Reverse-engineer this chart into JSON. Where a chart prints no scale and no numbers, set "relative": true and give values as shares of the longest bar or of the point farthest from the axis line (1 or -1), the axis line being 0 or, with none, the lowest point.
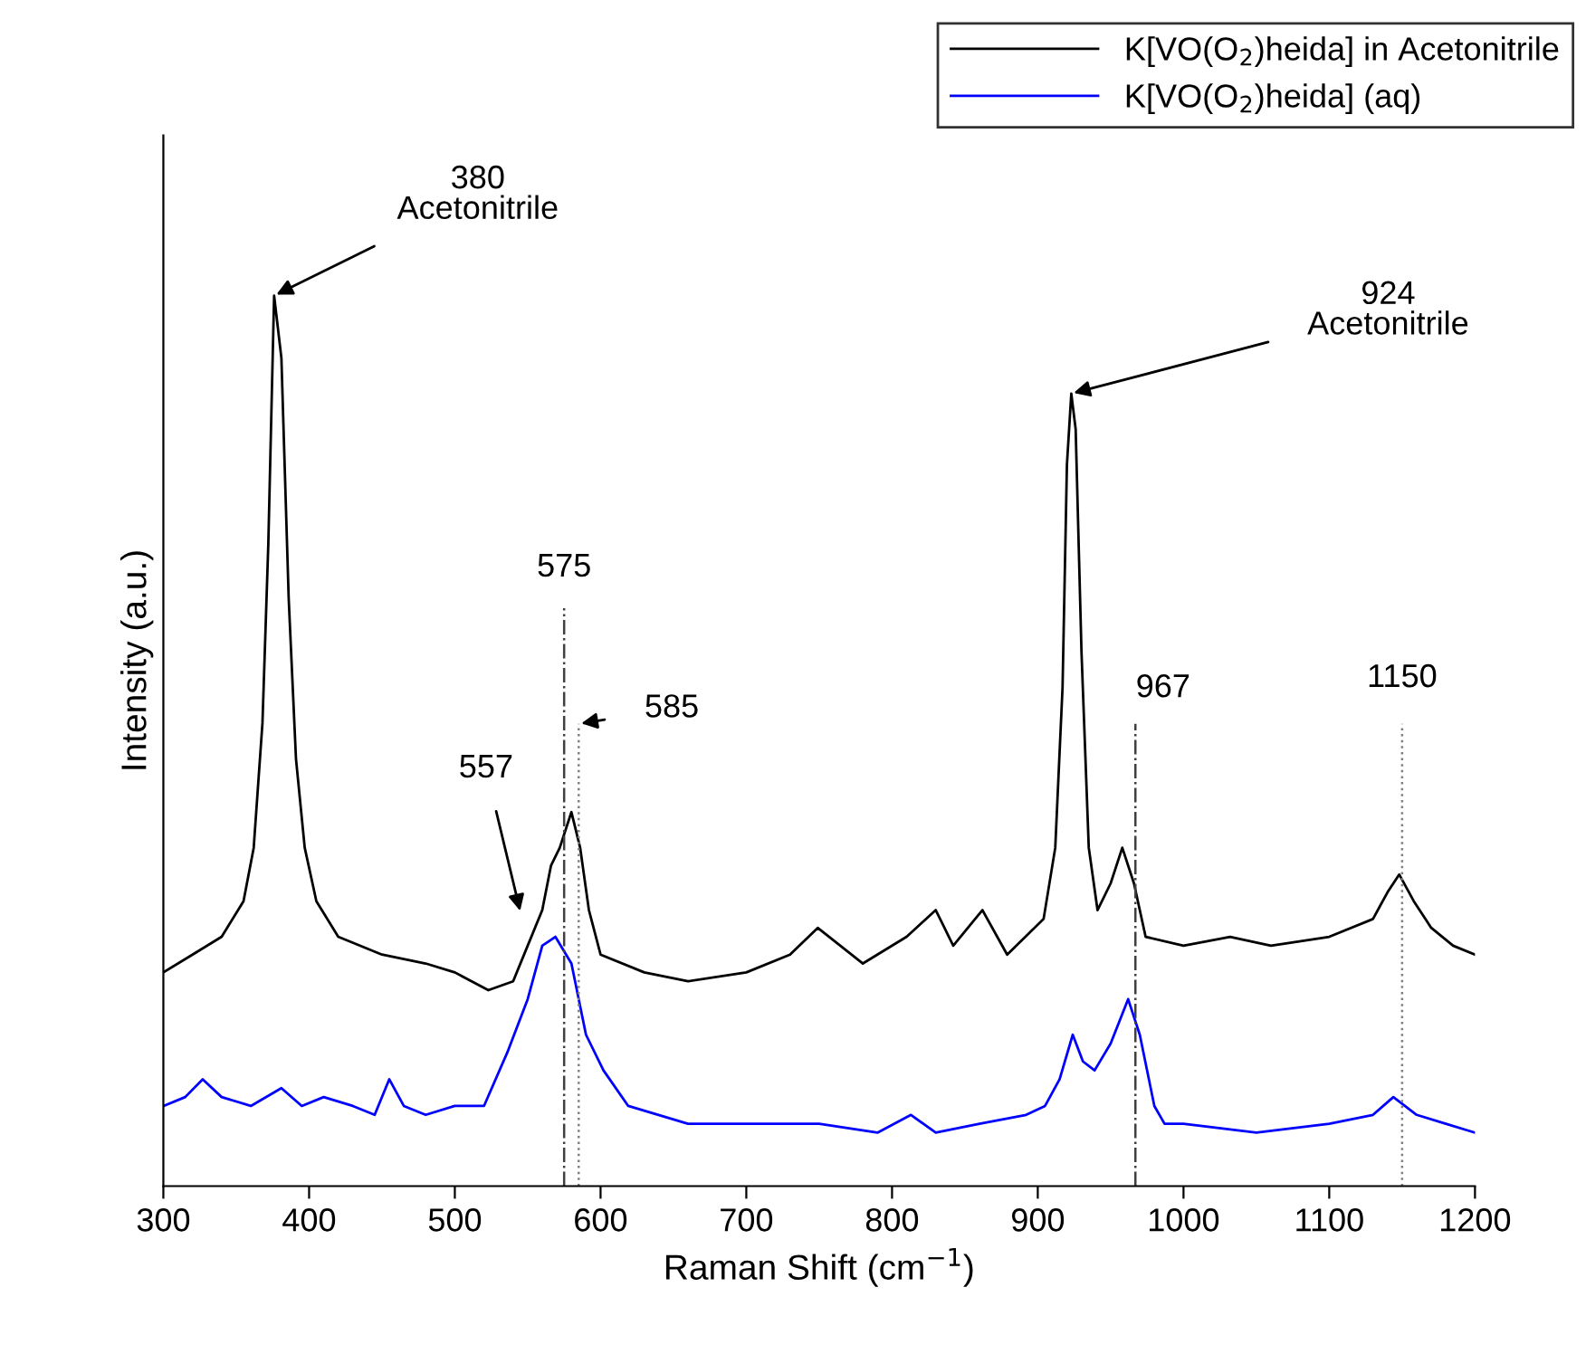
{
  "chart_data": {
    "type": "line",
    "relative": true,
    "xlabel": "Raman Shift (cm$^{−1}$)",
    "ylabel": "Intensity (a.u.)",
    "xlim": [
      300,
      1200
    ],
    "xticks": [
      300,
      400,
      500,
      600,
      700,
      800,
      900,
      1000,
      1100,
      1200
    ],
    "legend": "top right",
    "grid": false,
    "line_style": "solid",
    "marker": "none",
    "series": [
      {
        "name": "K[VO(O$_{2}$)heida] in Acetonitrile",
        "color": "#000000",
        "x": [
          300,
          320,
          340,
          355,
          362,
          368,
          372,
          376,
          381,
          386,
          391,
          397,
          405,
          420,
          450,
          480,
          500,
          523,
          540,
          550,
          560,
          566,
          572,
          580,
          586,
          592,
          600,
          630,
          660,
          700,
          730,
          749,
          780,
          810,
          830,
          842,
          862,
          879,
          904,
          912,
          917,
          920,
          923,
          926,
          930,
          935,
          941,
          950,
          958,
          966,
          974,
          1000,
          1032,
          1060,
          1100,
          1130,
          1140,
          1148,
          1158,
          1170,
          1185,
          1200
        ],
        "values": [
          0.24,
          0.26,
          0.28,
          0.32,
          0.38,
          0.52,
          0.72,
          1.0,
          0.93,
          0.66,
          0.48,
          0.38,
          0.32,
          0.28,
          0.26,
          0.25,
          0.24,
          0.22,
          0.23,
          0.27,
          0.31,
          0.36,
          0.38,
          0.42,
          0.38,
          0.31,
          0.26,
          0.24,
          0.23,
          0.24,
          0.26,
          0.29,
          0.25,
          0.28,
          0.31,
          0.27,
          0.31,
          0.26,
          0.3,
          0.38,
          0.56,
          0.81,
          0.89,
          0.85,
          0.6,
          0.38,
          0.31,
          0.34,
          0.38,
          0.34,
          0.28,
          0.27,
          0.28,
          0.27,
          0.28,
          0.3,
          0.33,
          0.35,
          0.32,
          0.29,
          0.27,
          0.26
        ]
      },
      {
        "name": "K[VO(O$_{2}$)heida] (aq)",
        "color": "#0000ff",
        "x": [
          300,
          315,
          327,
          340,
          360,
          381,
          395,
          410,
          430,
          445,
          455,
          465,
          480,
          500,
          520,
          536,
          550,
          560,
          569,
          580,
          590,
          602,
          619,
          660,
          700,
          750,
          790,
          813,
          830,
          860,
          892,
          905,
          915,
          924,
          931,
          939,
          950,
          962,
          970,
          980,
          987,
          1000,
          1050,
          1100,
          1130,
          1144,
          1160,
          1180,
          1200
        ],
        "values": [
          0.09,
          0.1,
          0.12,
          0.1,
          0.09,
          0.11,
          0.09,
          0.1,
          0.09,
          0.08,
          0.12,
          0.09,
          0.08,
          0.09,
          0.09,
          0.15,
          0.21,
          0.27,
          0.28,
          0.25,
          0.17,
          0.13,
          0.09,
          0.07,
          0.07,
          0.07,
          0.06,
          0.08,
          0.06,
          0.07,
          0.08,
          0.09,
          0.12,
          0.17,
          0.14,
          0.13,
          0.16,
          0.21,
          0.17,
          0.09,
          0.07,
          0.07,
          0.06,
          0.07,
          0.08,
          0.1,
          0.08,
          0.07,
          0.06
        ]
      }
    ],
    "ref_lines": [
      {
        "axis": "x",
        "value": 575,
        "label": "575",
        "color": "#404040",
        "line_style": "dashed"
      },
      {
        "axis": "x",
        "value": 585,
        "label": "585",
        "color": "#808080",
        "line_style": "dotted"
      },
      {
        "axis": "x",
        "value": 967,
        "label": "967",
        "color": "#404040",
        "line_style": "dashed"
      },
      {
        "axis": "x",
        "value": 1150,
        "label": "1150",
        "color": "#808080",
        "line_style": "dotted"
      }
    ],
    "annotations": [
      {
        "text": "380\nAcetonitrile",
        "x": 376,
        "y": 1.0
      },
      {
        "text": "924\nAcetonitrile",
        "x": 923,
        "y": 0.89
      },
      "557"
    ]
  }
}
